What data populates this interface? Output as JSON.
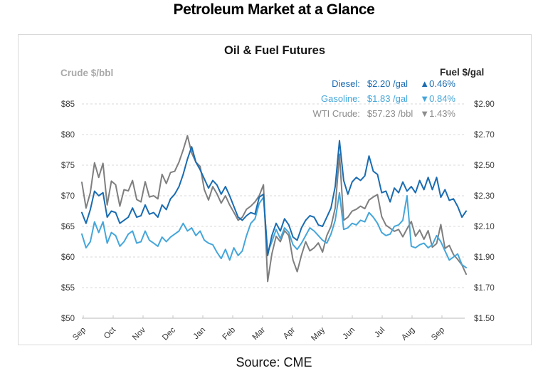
{
  "page": {
    "title": "Petroleum Market at a Glance",
    "source": "Source: CME"
  },
  "chart": {
    "title": "Oil & Fuel Futures",
    "left_axis_label": "Crude $/bbl",
    "right_axis_label": "Fuel $/gal",
    "legend": [
      {
        "label": "Diesel:",
        "value": "$2.20 /gal",
        "arrow": "▲",
        "change": "0.46%",
        "color": "#1a6cb1"
      },
      {
        "label": "Gasoline:",
        "value": "$1.83 /gal",
        "arrow": "▼",
        "change": "0.84%",
        "color": "#45a6da"
      },
      {
        "label": "WTI Crude:",
        "value": "$57.23 /bbl",
        "arrow": "▼",
        "change": "1.43%",
        "color": "#8c8c8c"
      }
    ]
  },
  "chart_data": {
    "type": "line",
    "title": "Oil & Fuel Futures",
    "grid": "dashed-horizontal",
    "legend_position": "top-right",
    "x": {
      "tick_labels": [
        "Sep",
        "Oct",
        "Nov",
        "Dec",
        "Jan",
        "Feb",
        "Mar",
        "Apr",
        "May",
        "Jun",
        "Jul",
        "Aug",
        "Sep"
      ]
    },
    "left_axis": {
      "label": "Crude $/bbl",
      "range": [
        50,
        85
      ],
      "tick_values": [
        85,
        80,
        75,
        70,
        65,
        60,
        55,
        50
      ],
      "tick_labels": [
        "$85",
        "$80",
        "$75",
        "$70",
        "$65",
        "$60",
        "$55",
        "$50"
      ]
    },
    "right_axis": {
      "label": "Fuel $/gal",
      "range": [
        1.5,
        2.9
      ],
      "tick_values": [
        2.9,
        2.7,
        2.5,
        2.3,
        2.1,
        1.9,
        1.7,
        1.5
      ],
      "tick_labels": [
        "$2.90",
        "$2.70",
        "$2.50",
        "$2.30",
        "$2.10",
        "$1.90",
        "$1.70",
        "$1.50"
      ]
    },
    "series": [
      {
        "name": "Diesel",
        "axis": "right",
        "unit": "$/gal",
        "color": "#1a6cb1",
        "latest": "$2.20 /gal",
        "change": "+0.46%",
        "values": [
          2.19,
          2.12,
          2.21,
          2.33,
          2.3,
          2.32,
          2.16,
          2.2,
          2.19,
          2.12,
          2.14,
          2.16,
          2.22,
          2.16,
          2.17,
          2.24,
          2.18,
          2.19,
          2.16,
          2.24,
          2.21,
          2.28,
          2.31,
          2.36,
          2.44,
          2.54,
          2.62,
          2.52,
          2.47,
          2.41,
          2.35,
          2.4,
          2.37,
          2.31,
          2.36,
          2.3,
          2.23,
          2.16,
          2.14,
          2.17,
          2.19,
          2.18,
          2.29,
          2.31,
          1.91,
          2.04,
          2.12,
          2.07,
          2.15,
          2.11,
          2.03,
          2.01,
          2.09,
          2.14,
          2.17,
          2.16,
          2.11,
          2.1,
          2.16,
          2.22,
          2.36,
          2.66,
          2.4,
          2.31,
          2.39,
          2.42,
          2.4,
          2.43,
          2.56,
          2.46,
          2.44,
          2.32,
          2.33,
          2.26,
          2.35,
          2.32,
          2.39,
          2.33,
          2.36,
          2.32,
          2.4,
          2.34,
          2.42,
          2.34,
          2.42,
          2.29,
          2.34,
          2.27,
          2.28,
          2.23,
          2.16,
          2.2
        ]
      },
      {
        "name": "Gasoline",
        "axis": "right",
        "unit": "$/gal",
        "color": "#45a6da",
        "latest": "$1.83 /gal",
        "change": "-0.84%",
        "values": [
          2.05,
          1.96,
          2.0,
          2.13,
          2.06,
          2.13,
          1.99,
          2.06,
          2.04,
          1.97,
          2.0,
          2.05,
          2.07,
          1.99,
          2.0,
          2.07,
          2.01,
          1.99,
          1.97,
          2.03,
          2.0,
          2.03,
          2.05,
          2.07,
          2.12,
          2.07,
          2.09,
          2.04,
          2.07,
          2.01,
          1.99,
          1.98,
          1.93,
          1.89,
          1.95,
          1.88,
          1.96,
          1.91,
          1.94,
          2.04,
          2.12,
          2.15,
          2.25,
          2.29,
          1.93,
          2.0,
          2.08,
          2.02,
          2.09,
          2.06,
          1.98,
          1.95,
          1.99,
          2.04,
          2.09,
          2.07,
          2.04,
          2.01,
          1.99,
          2.05,
          2.14,
          2.32,
          2.08,
          2.09,
          2.12,
          2.11,
          2.14,
          2.13,
          2.19,
          2.16,
          2.12,
          2.06,
          2.04,
          2.05,
          2.1,
          2.11,
          2.14,
          2.3,
          1.97,
          1.96,
          1.98,
          1.99,
          1.96,
          1.98,
          2.04,
          2.0,
          1.94,
          1.88,
          1.9,
          1.92,
          1.85,
          1.83
        ]
      },
      {
        "name": "WTI Crude",
        "axis": "left",
        "unit": "$/bbl",
        "color": "#7f7f7f",
        "latest": "$57.23 /bbl",
        "change": "-1.43%",
        "values": [
          72.2,
          68.0,
          70.5,
          75.4,
          73.0,
          75.3,
          68.5,
          72.4,
          71.8,
          68.3,
          71.0,
          70.8,
          72.5,
          69.4,
          69.0,
          72.3,
          69.8,
          70.0,
          69.5,
          73.5,
          72.0,
          73.8,
          74.0,
          75.5,
          77.5,
          79.8,
          77.0,
          75.5,
          74.8,
          71.0,
          69.3,
          71.5,
          70.3,
          68.8,
          70.0,
          68.5,
          67.3,
          66.0,
          66.5,
          67.8,
          68.3,
          69.0,
          70.0,
          71.8,
          56.0,
          60.5,
          63.4,
          62.5,
          64.3,
          63.5,
          59.5,
          57.6,
          60.3,
          62.5,
          61.0,
          61.5,
          62.3,
          60.8,
          63.5,
          65.0,
          68.0,
          76.8,
          66.0,
          66.5,
          67.5,
          67.8,
          68.3,
          67.9,
          69.3,
          69.8,
          70.2,
          66.6,
          65.2,
          64.7,
          64.2,
          64.5,
          63.3,
          64.6,
          65.8,
          63.4,
          64.4,
          62.9,
          64.3,
          61.6,
          62.2,
          65.3,
          61.4,
          61.9,
          60.4,
          59.6,
          58.7,
          57.2
        ]
      }
    ]
  }
}
